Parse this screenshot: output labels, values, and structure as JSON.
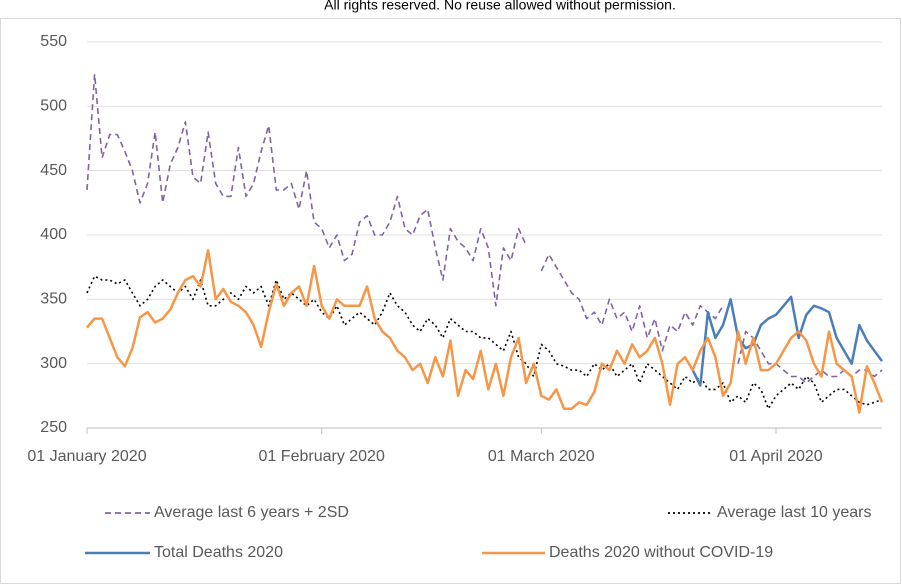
{
  "chart_data": {
    "type": "line",
    "note": "All rights reserved. No reuse allowed without permission.",
    "x": [
      "2020-01-01",
      "2020-01-02",
      "2020-01-03",
      "2020-01-04",
      "2020-01-05",
      "2020-01-06",
      "2020-01-07",
      "2020-01-08",
      "2020-01-09",
      "2020-01-10",
      "2020-01-11",
      "2020-01-12",
      "2020-01-13",
      "2020-01-14",
      "2020-01-15",
      "2020-01-16",
      "2020-01-17",
      "2020-01-18",
      "2020-01-19",
      "2020-01-20",
      "2020-01-21",
      "2020-01-22",
      "2020-01-23",
      "2020-01-24",
      "2020-01-25",
      "2020-01-26",
      "2020-01-27",
      "2020-01-28",
      "2020-01-29",
      "2020-01-30",
      "2020-01-31",
      "2020-02-01",
      "2020-02-02",
      "2020-02-03",
      "2020-02-04",
      "2020-02-05",
      "2020-02-06",
      "2020-02-07",
      "2020-02-08",
      "2020-02-09",
      "2020-02-10",
      "2020-02-11",
      "2020-02-12",
      "2020-02-13",
      "2020-02-14",
      "2020-02-15",
      "2020-02-16",
      "2020-02-17",
      "2020-02-18",
      "2020-02-19",
      "2020-02-20",
      "2020-02-21",
      "2020-02-22",
      "2020-02-23",
      "2020-02-24",
      "2020-02-25",
      "2020-02-26",
      "2020-02-27",
      "2020-02-28",
      "2020-02-29",
      "2020-03-01",
      "2020-03-02",
      "2020-03-03",
      "2020-03-04",
      "2020-03-05",
      "2020-03-06",
      "2020-03-07",
      "2020-03-08",
      "2020-03-09",
      "2020-03-10",
      "2020-03-11",
      "2020-03-12",
      "2020-03-13",
      "2020-03-14",
      "2020-03-15",
      "2020-03-16",
      "2020-03-17",
      "2020-03-18",
      "2020-03-19",
      "2020-03-20",
      "2020-03-21",
      "2020-03-22",
      "2020-03-23",
      "2020-03-24",
      "2020-03-25",
      "2020-03-26",
      "2020-03-27",
      "2020-03-28",
      "2020-03-29",
      "2020-03-30",
      "2020-03-31",
      "2020-04-01",
      "2020-04-02",
      "2020-04-03",
      "2020-04-04",
      "2020-04-05",
      "2020-04-06",
      "2020-04-07",
      "2020-04-08",
      "2020-04-09",
      "2020-04-10",
      "2020-04-11",
      "2020-04-12",
      "2020-04-13",
      "2020-04-14",
      "2020-04-15"
    ],
    "xlim": [
      "2020-01-01",
      "2020-04-15"
    ],
    "xticks": [
      {
        "value": "2020-01-01",
        "label": "01 January 2020"
      },
      {
        "value": "2020-02-01",
        "label": "01 February 2020"
      },
      {
        "value": "2020-03-01",
        "label": "01 March 2020"
      },
      {
        "value": "2020-04-01",
        "label": "01 April 2020"
      }
    ],
    "ylim": [
      250,
      550
    ],
    "yticks": [
      250,
      300,
      350,
      400,
      450,
      500,
      550
    ],
    "grid": true,
    "legend": "bottom",
    "series": [
      {
        "name": "Average last 6 years + 2SD",
        "color": "#8064a2",
        "dash": "dashed",
        "values": [
          435,
          525,
          460,
          478,
          478,
          465,
          450,
          425,
          440,
          480,
          425,
          455,
          468,
          488,
          445,
          440,
          480,
          440,
          430,
          430,
          468,
          430,
          440,
          465,
          485,
          435,
          435,
          440,
          420,
          450,
          410,
          405,
          390,
          400,
          380,
          385,
          410,
          415,
          400,
          400,
          410,
          430,
          405,
          400,
          415,
          420,
          390,
          365,
          405,
          395,
          390,
          380,
          405,
          390,
          345,
          390,
          380,
          405,
          392,
          null,
          372,
          385,
          375,
          365,
          355,
          350,
          335,
          340,
          330,
          350,
          335,
          340,
          325,
          345,
          320,
          335,
          310,
          330,
          325,
          340,
          330,
          345,
          340,
          335,
          345,
          null,
          300,
          325,
          320,
          310,
          300,
          300,
          295,
          290,
          290,
          285,
          290,
          295,
          290,
          290,
          295,
          290,
          295,
          295,
          290,
          295
        ]
      },
      {
        "name": "Average last 10 years",
        "color": "#000000",
        "dash": "dotted",
        "values": [
          355,
          368,
          365,
          365,
          362,
          365,
          355,
          345,
          350,
          360,
          365,
          360,
          355,
          360,
          350,
          365,
          345,
          345,
          350,
          355,
          350,
          360,
          355,
          360,
          345,
          365,
          350,
          355,
          350,
          345,
          350,
          340,
          335,
          345,
          330,
          335,
          340,
          335,
          330,
          340,
          355,
          345,
          340,
          330,
          325,
          335,
          330,
          320,
          335,
          330,
          325,
          325,
          320,
          320,
          315,
          310,
          325,
          305,
          300,
          290,
          315,
          310,
          300,
          298,
          295,
          295,
          290,
          300,
          295,
          300,
          290,
          295,
          300,
          285,
          300,
          295,
          290,
          285,
          280,
          290,
          285,
          290,
          280,
          280,
          285,
          270,
          275,
          270,
          285,
          280,
          265,
          275,
          280,
          285,
          280,
          290,
          285,
          270,
          275,
          280,
          280,
          275,
          270,
          268,
          270,
          272
        ]
      },
      {
        "name": "Total Deaths 2020",
        "color": "#4a7ebb",
        "dash": "solid",
        "values": [
          null,
          null,
          null,
          null,
          null,
          null,
          null,
          null,
          null,
          null,
          null,
          null,
          null,
          null,
          null,
          null,
          null,
          null,
          null,
          null,
          null,
          null,
          null,
          null,
          null,
          null,
          null,
          null,
          null,
          null,
          null,
          null,
          null,
          null,
          null,
          null,
          null,
          null,
          null,
          null,
          null,
          null,
          null,
          null,
          null,
          null,
          null,
          null,
          null,
          null,
          null,
          null,
          null,
          null,
          null,
          null,
          null,
          null,
          null,
          null,
          null,
          null,
          null,
          null,
          null,
          null,
          null,
          null,
          null,
          null,
          null,
          null,
          null,
          null,
          null,
          null,
          null,
          null,
          null,
          null,
          295,
          283,
          340,
          320,
          330,
          350,
          320,
          312,
          315,
          330,
          335,
          338,
          345,
          352,
          320,
          338,
          345,
          343,
          340,
          320,
          310,
          300,
          330,
          318,
          310,
          302
        ]
      },
      {
        "name": "Deaths 2020 without COVID-19",
        "color": "#f79646",
        "dash": "solid",
        "values": [
          328,
          335,
          335,
          320,
          305,
          298,
          312,
          336,
          340,
          332,
          335,
          342,
          355,
          365,
          368,
          360,
          388,
          350,
          358,
          348,
          345,
          340,
          330,
          313,
          340,
          362,
          345,
          355,
          360,
          345,
          376,
          345,
          335,
          350,
          345,
          345,
          345,
          360,
          335,
          325,
          320,
          310,
          305,
          295,
          300,
          285,
          305,
          290,
          318,
          275,
          295,
          288,
          310,
          280,
          300,
          275,
          305,
          320,
          285,
          300,
          275,
          272,
          280,
          265,
          265,
          270,
          268,
          278,
          300,
          295,
          310,
          300,
          315,
          305,
          310,
          320,
          300,
          268,
          300,
          305,
          295,
          310,
          320,
          305,
          275,
          285,
          325,
          300,
          320,
          295,
          295,
          300,
          310,
          320,
          325,
          318,
          300,
          290,
          325,
          300,
          295,
          290,
          262,
          298,
          285,
          270
        ]
      }
    ]
  }
}
